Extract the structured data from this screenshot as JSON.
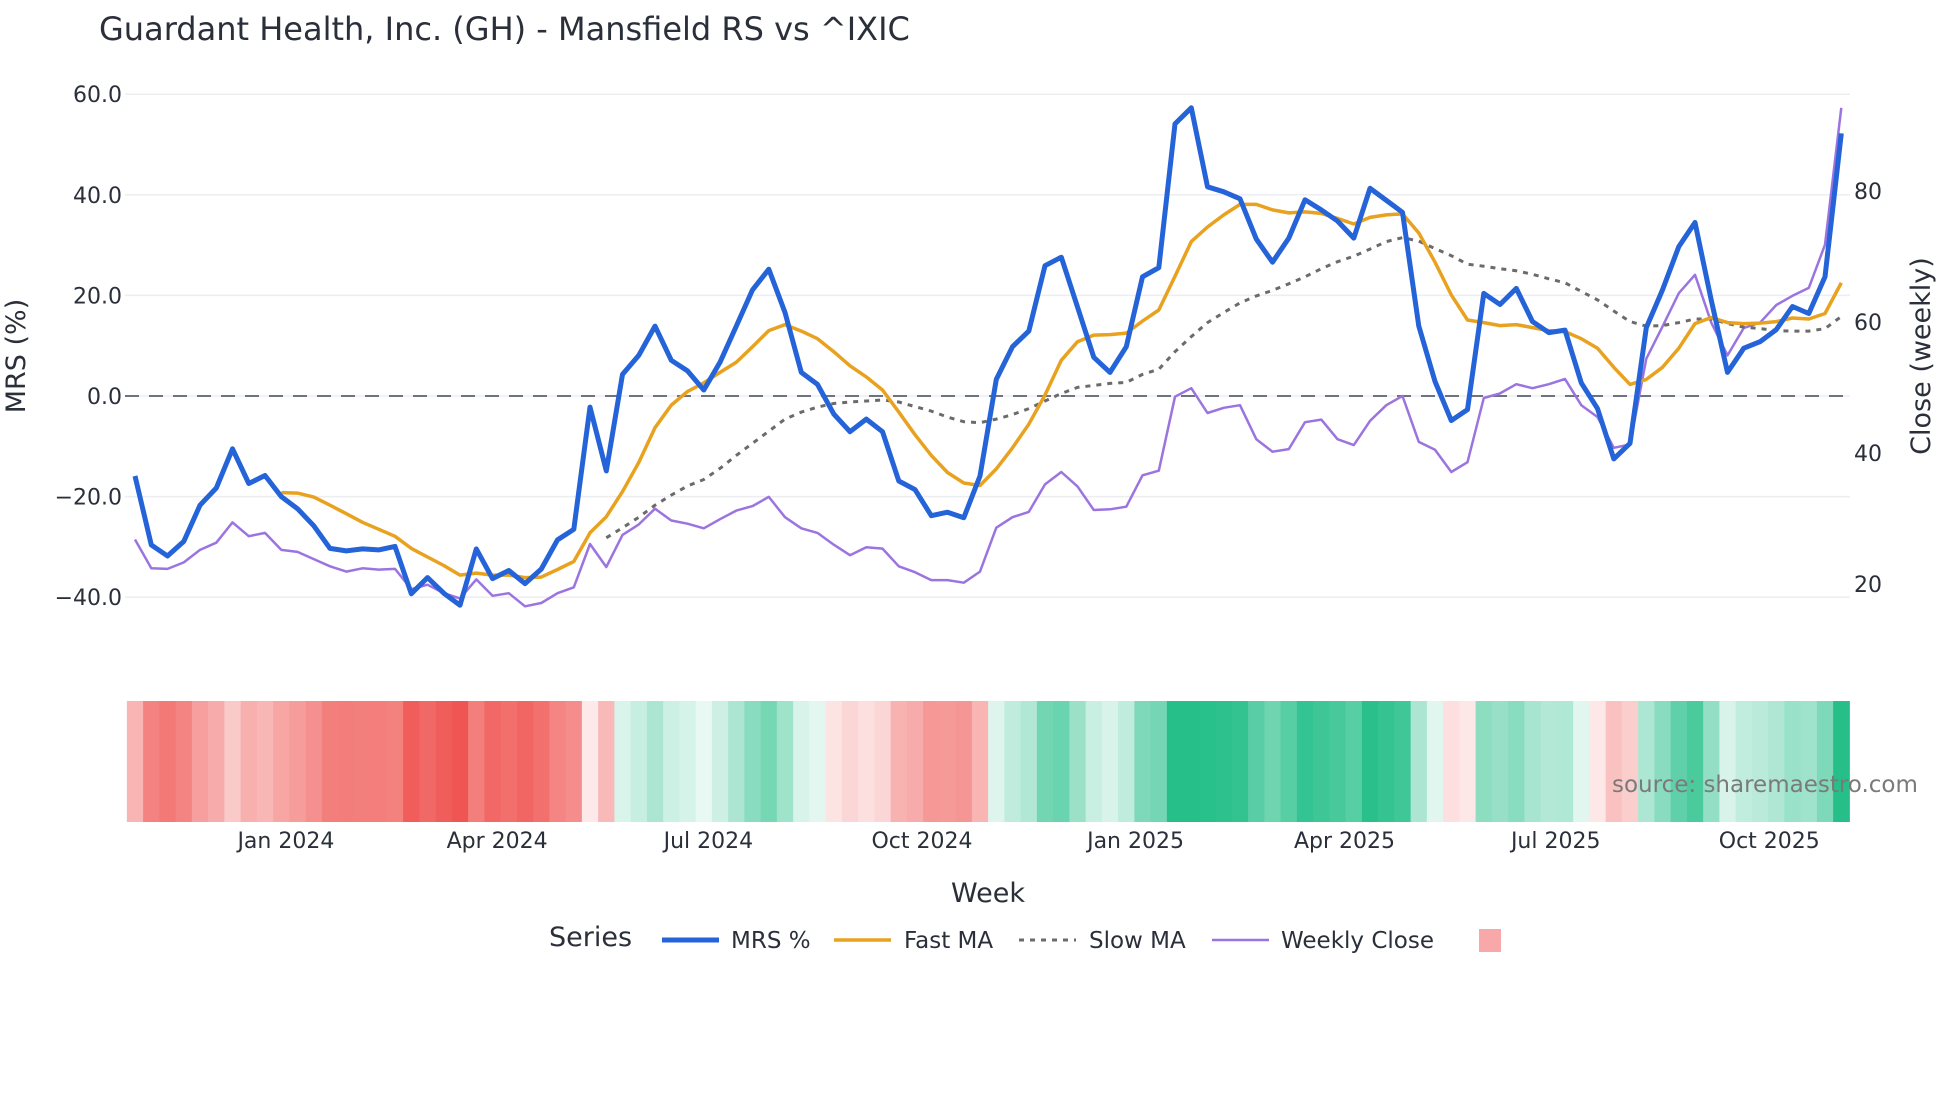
{
  "chart_data": {
    "type": "line",
    "title": "Guardant Health, Inc. (GH) - Mansfield RS vs ^IXIC",
    "xlabel": "Week",
    "ylabel": "MRS (%)",
    "y2label": "Close (weekly)",
    "x_start": "2023-10-28",
    "x_step_days": 7,
    "x_ticks": [
      {
        "date": "2024-01-01",
        "label": "Jan 2024"
      },
      {
        "date": "2024-04-01",
        "label": "Apr 2024"
      },
      {
        "date": "2024-07-01",
        "label": "Jul 2024"
      },
      {
        "date": "2024-10-01",
        "label": "Oct 2024"
      },
      {
        "date": "2025-01-01",
        "label": "Jan 2025"
      },
      {
        "date": "2025-04-01",
        "label": "Apr 2025"
      },
      {
        "date": "2025-07-01",
        "label": "Jul 2025"
      },
      {
        "date": "2025-10-01",
        "label": "Oct 2025"
      }
    ],
    "ylim": [
      -40,
      60
    ],
    "y_ticks": [
      {
        "value": 60,
        "label": "60.0"
      },
      {
        "value": 40,
        "label": "40.0"
      },
      {
        "value": 20,
        "label": "20.0"
      },
      {
        "value": 0,
        "label": "0.0"
      },
      {
        "value": -20,
        "label": "−20.0"
      },
      {
        "value": -40,
        "label": "−40.0"
      }
    ],
    "y2_ticks": [
      {
        "value": 80,
        "label": "80"
      },
      {
        "value": 60,
        "label": "60"
      },
      {
        "value": 40,
        "label": "40"
      },
      {
        "value": 20,
        "label": "20"
      }
    ],
    "zero_line": 0,
    "grid": true,
    "legend": {
      "title": "Series",
      "placement": "bottom"
    },
    "series": [
      {
        "name": "MRS %",
        "axis": "left",
        "color": "#2563d8",
        "style": "solid",
        "values": [
          -15.9,
          -29.6,
          -31.8,
          -28.9,
          -21.7,
          -18.3,
          -10.5,
          -17.4,
          -15.8,
          -20,
          -22.4,
          -25.8,
          -30.3,
          -30.8,
          -30.4,
          -30.6,
          -29.9,
          -39.3,
          -36.1,
          -39.2,
          -41.6,
          -30.4,
          -36.3,
          -34.7,
          -37.3,
          -34.4,
          -28.6,
          -26.5,
          -2.2,
          -14.9,
          4.3,
          8.1,
          13.9,
          7.1,
          5.0,
          1.2,
          6.7,
          13.9,
          21.1,
          25.2,
          16.6,
          4.7,
          2.3,
          -3.6,
          -7.1,
          -4.6,
          -7.1,
          -16.9,
          -18.6,
          -23.8,
          -23.1,
          -24.2,
          -15.9,
          3.3,
          9.8,
          12.9,
          25.9,
          27.6,
          17.7,
          7.7,
          4.7,
          9.8,
          23.7,
          25.5,
          54.1,
          57.3,
          41.6,
          40.6,
          39.2,
          31.2,
          26.6,
          31.4,
          39,
          37,
          34.8,
          31.4,
          41.3,
          38.9,
          36.5,
          13.9,
          2.9,
          -4.9,
          -2.7,
          20.4,
          18.2,
          21.4,
          14.8,
          12.6,
          13.1,
          2.6,
          -2.5,
          -12.5,
          -9.4,
          13.6,
          21.1,
          29.7,
          34.5,
          19,
          4.7,
          9.5,
          10.8,
          13.2,
          17.8,
          16.4,
          23.7,
          52.2
        ]
      },
      {
        "name": "Fast MA",
        "axis": "left",
        "color": "#e8a21f",
        "style": "solid",
        "values": [
          null,
          null,
          null,
          null,
          null,
          null,
          null,
          null,
          null,
          -19.2,
          -19.3,
          -20.1,
          -21.7,
          -23.4,
          -25.1,
          -26.5,
          -27.9,
          -30.3,
          -32,
          -33.7,
          -35.6,
          -35.2,
          -35.6,
          -35.6,
          -36.1,
          -36,
          -34.5,
          -32.9,
          -27.2,
          -24,
          -19,
          -13.2,
          -6.3,
          -1.8,
          0.9,
          2.6,
          4.7,
          6.7,
          9.8,
          13,
          14.2,
          12.9,
          11.4,
          8.8,
          6,
          3.8,
          1.2,
          -3.2,
          -7.7,
          -11.8,
          -15.2,
          -17.3,
          -17.8,
          -14.5,
          -10.3,
          -5.6,
          0.2,
          7.1,
          10.8,
          12.1,
          12.2,
          12.5,
          14.9,
          17.1,
          23.8,
          30.7,
          33.6,
          36,
          38.1,
          38.1,
          37,
          36.4,
          36.6,
          36.3,
          35.3,
          34.2,
          35.5,
          36,
          36.2,
          32.4,
          26.6,
          20.1,
          15.1,
          14.6,
          14,
          14.2,
          13.6,
          13,
          12.8,
          11.4,
          9.5,
          5.7,
          2.3,
          3.3,
          5.7,
          9.5,
          14.4,
          15.6,
          14.6,
          14.4,
          14.5,
          14.8,
          15.5,
          15.3,
          16.4,
          22.5
        ]
      },
      {
        "name": "Slow MA",
        "axis": "left",
        "color": "#6b6b6b",
        "style": "dotted",
        "values": [
          null,
          null,
          null,
          null,
          null,
          null,
          null,
          null,
          null,
          null,
          null,
          null,
          null,
          null,
          null,
          null,
          null,
          null,
          null,
          null,
          null,
          null,
          null,
          null,
          null,
          null,
          null,
          null,
          null,
          -28.2,
          -26.2,
          -24.1,
          -21.7,
          -19.7,
          -17.9,
          -16.6,
          -14.4,
          -11.8,
          -9.4,
          -7,
          -4.6,
          -3.2,
          -2.2,
          -1.5,
          -1.2,
          -1,
          -0.8,
          -1.2,
          -2.1,
          -3,
          -4.2,
          -5.1,
          -5.3,
          -4.6,
          -3.7,
          -2.5,
          -1,
          0.5,
          1.7,
          2.1,
          2.5,
          2.7,
          4.3,
          5.3,
          8.8,
          11.8,
          14.6,
          16.6,
          18.5,
          19.9,
          21,
          22.3,
          23.7,
          25.3,
          26.7,
          27.8,
          29.2,
          30.7,
          31.5,
          30.8,
          29.3,
          27.9,
          26.2,
          25.8,
          25.3,
          24.9,
          24.2,
          23.3,
          22.5,
          20.8,
          19.1,
          16.9,
          14.8,
          13.9,
          14,
          14.6,
          15.3,
          15.3,
          14.4,
          13.7,
          13.4,
          13,
          12.9,
          12.9,
          13.4,
          15.8
        ]
      },
      {
        "name": "Weekly Close",
        "axis": "right",
        "color": "#9b74e0",
        "style": "solid",
        "values": [
          26.8,
          22.4,
          22.3,
          23.3,
          25.2,
          26.3,
          29.4,
          27.3,
          27.8,
          25.2,
          24.9,
          23.8,
          22.7,
          21.9,
          22.4,
          22.2,
          22.3,
          19.2,
          19.9,
          18.6,
          17.8,
          20.7,
          18.2,
          18.6,
          16.6,
          17.1,
          18.6,
          19.5,
          26.1,
          22.6,
          27.5,
          29.1,
          31.5,
          29.7,
          29.2,
          28.5,
          29.9,
          31.2,
          31.9,
          33.3,
          30.2,
          28.5,
          27.8,
          26,
          24.4,
          25.6,
          25.4,
          22.7,
          21.8,
          20.6,
          20.6,
          20.2,
          21.9,
          28.6,
          30.2,
          31,
          35.2,
          37.1,
          34.9,
          31.3,
          31.4,
          31.8,
          36.6,
          37.3,
          48.6,
          49.9,
          46.1,
          46.9,
          47.3,
          42.1,
          40.2,
          40.6,
          44.7,
          45.1,
          42.1,
          41.2,
          44.9,
          47.3,
          48.7,
          41.7,
          40.5,
          37.1,
          38.6,
          48.4,
          49.1,
          50.5,
          49.9,
          50.5,
          51.3,
          47.3,
          45.5,
          40.8,
          41.3,
          54.4,
          59.3,
          64.4,
          67.2,
          59.9,
          54.9,
          59.1,
          59.9,
          62.6,
          64,
          65.2,
          71.8,
          92.7
        ]
      }
    ],
    "heatmap": {
      "based_on": "MRS %",
      "negative_color": "#ef5350",
      "positive_color": "#26bf8a",
      "legend_swatch_color": "#f8a8a8"
    },
    "source": "source: sharemaestro.com"
  }
}
